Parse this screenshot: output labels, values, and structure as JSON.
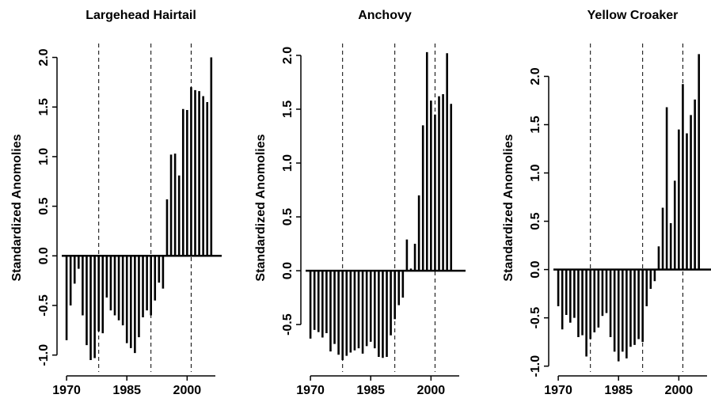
{
  "chart_data": [
    {
      "type": "bar",
      "title": "Largehead Hairtail",
      "y_label": "Standardized Anomolies",
      "color": "#000000",
      "x": [
        1970,
        1971,
        1972,
        1973,
        1974,
        1975,
        1976,
        1977,
        1978,
        1979,
        1980,
        1981,
        1982,
        1983,
        1984,
        1985,
        1986,
        1987,
        1988,
        1989,
        1990,
        1991,
        1992,
        1993,
        1994,
        1995,
        1996,
        1997,
        1998,
        1999,
        2000,
        2001,
        2002,
        2003,
        2004,
        2005,
        2006
      ],
      "values": [
        -0.85,
        -0.5,
        -0.28,
        -0.13,
        -0.6,
        -0.9,
        -1.05,
        -1.03,
        -0.76,
        -0.78,
        -0.42,
        -0.55,
        -0.6,
        -0.65,
        -0.7,
        -0.88,
        -0.93,
        -0.98,
        -0.82,
        -0.62,
        -0.55,
        -0.6,
        -0.45,
        -0.27,
        -0.33,
        0.57,
        1.02,
        1.03,
        0.81,
        1.48,
        1.47,
        1.7,
        1.67,
        1.66,
        1.61,
        1.55,
        2.0
      ],
      "vlines": [
        1978,
        1991,
        2001
      ],
      "xlim": [
        1968.8,
        2008.6
      ],
      "xticks": [
        1970,
        1985,
        2000
      ],
      "ylim": [
        -1.17,
        2.14
      ],
      "yticks": [
        {
          "value": -1,
          "label": "-1.0"
        },
        {
          "value": -0.5,
          "label": "-0.5"
        },
        {
          "value": 0,
          "label": "0.0"
        },
        {
          "value": 0.5,
          "label": "0.5"
        },
        {
          "value": 1,
          "label": "1.0"
        },
        {
          "value": 1.5,
          "label": "1.5"
        },
        {
          "value": 2,
          "label": "2.0"
        }
      ]
    },
    {
      "type": "bar",
      "title": "Anchovy",
      "y_label": "Standardized Anomolies",
      "color": "#000000",
      "x": [
        1970,
        1971,
        1972,
        1973,
        1974,
        1975,
        1976,
        1977,
        1978,
        1979,
        1980,
        1981,
        1982,
        1983,
        1984,
        1985,
        1986,
        1987,
        1988,
        1989,
        1990,
        1991,
        1992,
        1993,
        1994,
        1995,
        1996,
        1997,
        1998,
        1999,
        2000,
        2001,
        2002,
        2003,
        2004,
        2005
      ],
      "values": [
        -0.63,
        -0.55,
        -0.57,
        -0.62,
        -0.58,
        -0.75,
        -0.68,
        -0.78,
        -0.83,
        -0.79,
        -0.76,
        -0.74,
        -0.72,
        -0.77,
        -0.7,
        -0.66,
        -0.72,
        -0.8,
        -0.81,
        -0.8,
        -0.6,
        -0.45,
        -0.32,
        -0.25,
        0.29,
        0.02,
        0.25,
        0.7,
        1.35,
        2.03,
        1.58,
        1.45,
        1.62,
        1.64,
        2.02,
        1.55
      ],
      "vlines": [
        1978,
        1991,
        2001
      ],
      "xlim": [
        1968.8,
        2008.6
      ],
      "xticks": [
        1970,
        1985,
        2000
      ],
      "ylim": [
        -0.94,
        2.11
      ],
      "yticks": [
        {
          "value": -0.5,
          "label": "-0.5"
        },
        {
          "value": 0,
          "label": "0.0"
        },
        {
          "value": 0.5,
          "label": "0.5"
        },
        {
          "value": 1,
          "label": "1.0"
        },
        {
          "value": 1.5,
          "label": "1.5"
        },
        {
          "value": 2,
          "label": "2.0"
        }
      ]
    },
    {
      "type": "bar",
      "title": "Yellow Croaker",
      "y_label": "Standardized Anomolies",
      "color": "#000000",
      "x": [
        1970,
        1971,
        1972,
        1973,
        1974,
        1975,
        1976,
        1977,
        1978,
        1979,
        1980,
        1981,
        1982,
        1983,
        1984,
        1985,
        1986,
        1987,
        1988,
        1989,
        1990,
        1991,
        1992,
        1993,
        1994,
        1995,
        1996,
        1997,
        1998,
        1999,
        2000,
        2001,
        2002,
        2003,
        2004,
        2005
      ],
      "values": [
        -0.38,
        -0.62,
        -0.47,
        -0.55,
        -0.5,
        -0.7,
        -0.68,
        -0.9,
        -0.72,
        -0.65,
        -0.6,
        -0.48,
        -0.45,
        -0.7,
        -0.85,
        -0.95,
        -0.85,
        -0.92,
        -0.8,
        -0.78,
        -0.72,
        -0.75,
        -0.38,
        -0.2,
        -0.12,
        0.24,
        0.64,
        1.68,
        0.48,
        0.92,
        1.45,
        1.92,
        1.41,
        1.6,
        1.76,
        2.23
      ],
      "vlines": [
        1978,
        1991,
        2001
      ],
      "xlim": [
        1968.8,
        2008.6
      ],
      "xticks": [
        1970,
        1985,
        2000
      ],
      "ylim": [
        -1.06,
        2.34
      ],
      "yticks": [
        {
          "value": -1,
          "label": "-1.0"
        },
        {
          "value": -0.5,
          "label": "-0.5"
        },
        {
          "value": 0,
          "label": "0.0"
        },
        {
          "value": 0.5,
          "label": "0.5"
        },
        {
          "value": 1,
          "label": "1.0"
        },
        {
          "value": 1.5,
          "label": "1.5"
        },
        {
          "value": 2,
          "label": "2.0"
        }
      ]
    }
  ]
}
